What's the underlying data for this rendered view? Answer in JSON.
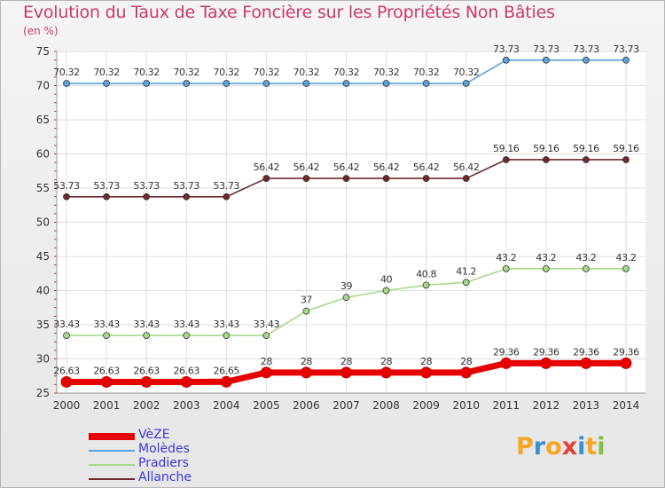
{
  "title": "Evolution du Taux de Taxe Foncière sur les Propriétés Non Bâties",
  "unit_label": "(en %)",
  "logo": {
    "text": "Proxiti",
    "colors": [
      "#f5a623",
      "#3a8fd6",
      "#f5a623",
      "#e2403a",
      "#3a8fd6",
      "#f5a623",
      "#7cc142"
    ]
  },
  "chart_data": {
    "type": "line",
    "title": "Evolution du Taux de Taxe Foncière sur les Propriétés Non Bâties",
    "ylabel": "(en %)",
    "xlabel": "",
    "categories": [
      "2000",
      "2001",
      "2002",
      "2003",
      "2004",
      "2005",
      "2006",
      "2007",
      "2008",
      "2009",
      "2010",
      "2011",
      "2012",
      "2013",
      "2014"
    ],
    "ylim": [
      25,
      75
    ],
    "yticks": [
      25,
      30,
      35,
      40,
      45,
      50,
      55,
      60,
      65,
      70,
      75
    ],
    "grid": true,
    "legend_position": "bottom-left",
    "series": [
      {
        "name": "VèZE",
        "color": "#e60000",
        "values": [
          26.63,
          26.63,
          26.63,
          26.63,
          26.65,
          28,
          28,
          28,
          28,
          28,
          28,
          29.36,
          29.36,
          29.36,
          29.36
        ],
        "labels": [
          "26.63",
          "26.63",
          "26.63",
          "26.63",
          "26.65",
          "28",
          "28",
          "28",
          "28",
          "28",
          "28",
          "29.36",
          "29.36",
          "29.36",
          "29.36"
        ]
      },
      {
        "name": "Molèdes",
        "color": "#5aa4d8",
        "values": [
          70.32,
          70.32,
          70.32,
          70.32,
          70.32,
          70.32,
          70.32,
          70.32,
          70.32,
          70.32,
          70.32,
          73.73,
          73.73,
          73.73,
          73.73
        ],
        "labels": [
          "70.32",
          "70.32",
          "70.32",
          "70.32",
          "70.32",
          "70.32",
          "70.32",
          "70.32",
          "70.32",
          "70.32",
          "70.32",
          "73.73",
          "73.73",
          "73.73",
          "73.73"
        ]
      },
      {
        "name": "Pradiers",
        "color": "#a6d98a",
        "values": [
          33.43,
          33.43,
          33.43,
          33.43,
          33.43,
          33.43,
          37,
          39,
          40,
          40.8,
          41.2,
          43.2,
          43.2,
          43.2,
          43.2
        ],
        "labels": [
          "33.43",
          "33.43",
          "33.43",
          "33.43",
          "33.43",
          "33.43",
          "37",
          "39",
          "40",
          "40.8",
          "41.2",
          "43.2",
          "43.2",
          "43.2",
          "43.2"
        ]
      },
      {
        "name": "Allanche",
        "color": "#6e2a2a",
        "values": [
          53.73,
          53.73,
          53.73,
          53.73,
          53.73,
          56.42,
          56.42,
          56.42,
          56.42,
          56.42,
          56.42,
          59.16,
          59.16,
          59.16,
          59.16
        ],
        "labels": [
          "53.73",
          "53.73",
          "53.73",
          "53.73",
          "53.73",
          "56.42",
          "56.42",
          "56.42",
          "56.42",
          "56.42",
          "56.42",
          "59.16",
          "59.16",
          "59.16",
          "59.16"
        ]
      }
    ]
  }
}
